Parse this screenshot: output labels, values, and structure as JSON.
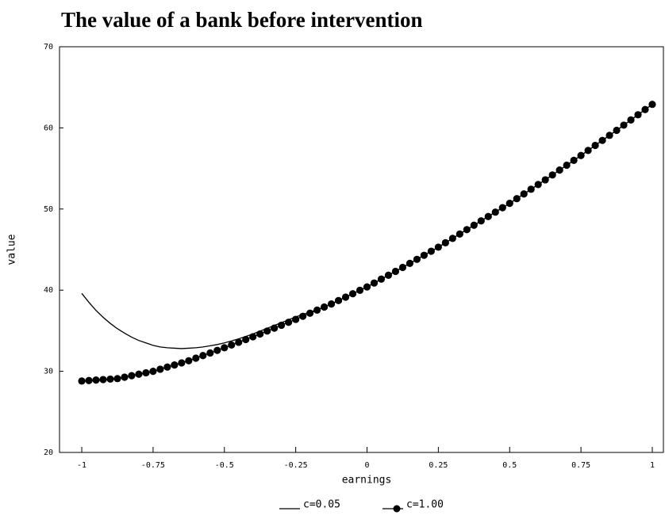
{
  "chart_data": {
    "type": "line",
    "title": "The value of a bank before intervention",
    "x_label": "earnings",
    "y_label": "value",
    "xlim": [
      -1.078,
      1.039
    ],
    "ylim": [
      20,
      70
    ],
    "xticks": [
      -1,
      -0.75,
      -0.5,
      -0.25,
      0,
      0.25,
      0.5,
      0.75,
      1
    ],
    "yticks": [
      20,
      30,
      40,
      50,
      60,
      70
    ],
    "grid": false,
    "legend": "bottom",
    "x": [
      -1,
      -0.975,
      -0.95,
      -0.925,
      -0.9,
      -0.875,
      -0.85,
      -0.825,
      -0.8,
      -0.775,
      -0.75,
      -0.725,
      -0.7,
      -0.675,
      -0.65,
      -0.625,
      -0.6,
      -0.575,
      -0.55,
      -0.525,
      -0.5,
      -0.475,
      -0.45,
      -0.425,
      -0.4,
      -0.375,
      -0.35,
      -0.325,
      -0.3,
      -0.275,
      -0.25,
      -0.225,
      -0.2,
      -0.175,
      -0.15,
      -0.125,
      -0.1,
      -0.075,
      -0.05,
      -0.025,
      0,
      0.025,
      0.05,
      0.075,
      0.1,
      0.125,
      0.15,
      0.175,
      0.2,
      0.225,
      0.25,
      0.275,
      0.3,
      0.325,
      0.35,
      0.375,
      0.4,
      0.425,
      0.45,
      0.475,
      0.5,
      0.525,
      0.55,
      0.575,
      0.6,
      0.625,
      0.65,
      0.675,
      0.7,
      0.725,
      0.75,
      0.775,
      0.8,
      0.825,
      0.85,
      0.875,
      0.9,
      0.925,
      0.95,
      0.975,
      1
    ],
    "series": [
      {
        "name": "c=0.05",
        "color": "#000000",
        "marker": "none",
        "values": [
          39.6,
          38.5,
          37.5,
          36.65,
          35.9,
          35.25,
          34.7,
          34.2,
          33.8,
          33.5,
          33.2,
          33.0,
          32.9,
          32.85,
          32.8,
          32.85,
          32.9,
          33.0,
          33.15,
          33.3,
          33.5,
          33.75,
          34.0,
          34.3,
          34.6,
          34.95,
          35.3,
          35.65,
          36.0,
          36.35,
          36.7,
          37.0,
          37.3,
          37.6,
          37.92,
          38.3,
          38.72,
          39.14,
          39.56,
          39.98,
          40.4,
          40.88,
          41.36,
          41.84,
          42.32,
          42.8,
          43.3,
          43.8,
          44.3,
          44.8,
          45.3,
          45.84,
          46.38,
          46.92,
          47.46,
          48.0,
          48.54,
          49.08,
          49.62,
          50.16,
          50.7,
          51.28,
          51.86,
          52.44,
          53.02,
          53.6,
          54.2,
          54.8,
          55.4,
          56.0,
          56.6,
          57.22,
          57.84,
          58.46,
          59.08,
          59.7,
          60.34,
          60.98,
          61.62,
          62.26,
          62.9
        ]
      },
      {
        "name": "c=1.00",
        "color": "#000000",
        "marker": "circle",
        "values": [
          28.8,
          28.86,
          28.92,
          28.98,
          29.04,
          29.1,
          29.28,
          29.46,
          29.64,
          29.82,
          30.0,
          30.26,
          30.52,
          30.78,
          31.04,
          31.3,
          31.62,
          31.94,
          32.26,
          32.58,
          32.9,
          33.24,
          33.58,
          33.92,
          34.26,
          34.6,
          34.96,
          35.32,
          35.68,
          36.04,
          36.4,
          36.78,
          37.16,
          37.54,
          37.92,
          38.3,
          38.72,
          39.14,
          39.56,
          39.98,
          40.4,
          40.88,
          41.36,
          41.84,
          42.32,
          42.8,
          43.3,
          43.8,
          44.3,
          44.8,
          45.3,
          45.84,
          46.38,
          46.92,
          47.46,
          48.0,
          48.54,
          49.08,
          49.62,
          50.16,
          50.7,
          51.28,
          51.86,
          52.44,
          53.02,
          53.6,
          54.2,
          54.8,
          55.4,
          56.0,
          56.6,
          57.22,
          57.84,
          58.46,
          59.08,
          59.7,
          60.34,
          60.98,
          61.62,
          62.26,
          62.9
        ]
      }
    ]
  }
}
